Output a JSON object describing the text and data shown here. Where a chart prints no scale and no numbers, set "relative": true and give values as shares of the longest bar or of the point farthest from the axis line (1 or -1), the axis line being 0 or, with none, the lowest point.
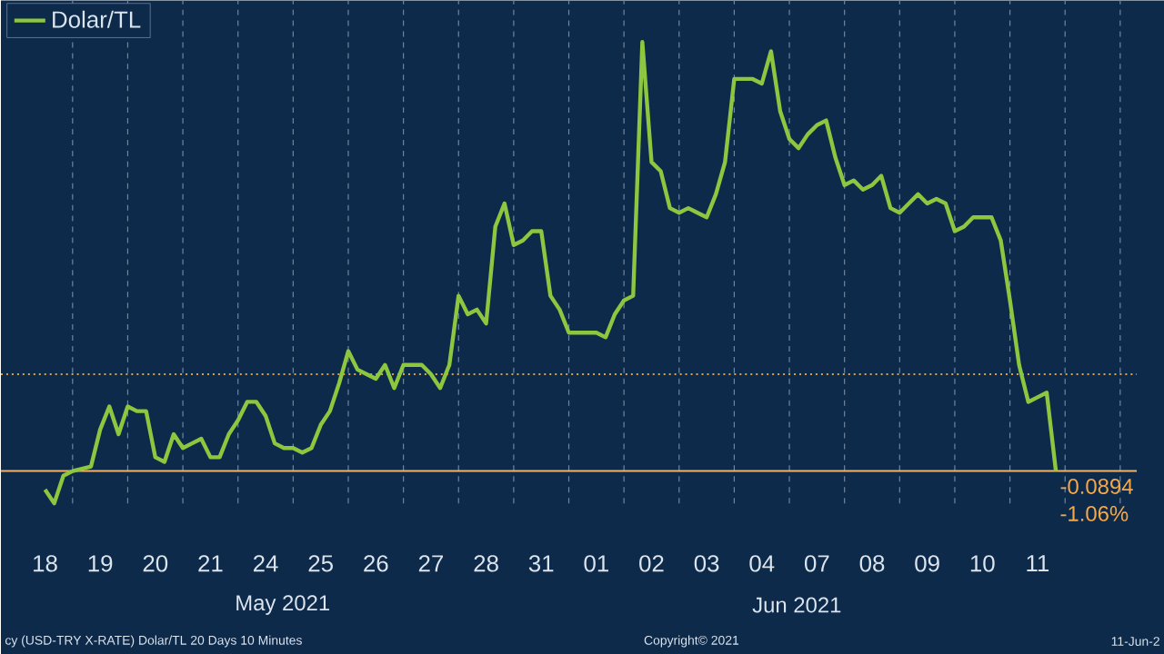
{
  "chart_data": {
    "type": "line",
    "relative": true,
    "legend": "top left",
    "grid": "x",
    "marker": "none",
    "line_style": "solid",
    "categories": [
      null,
      null,
      null,
      "18",
      null,
      null,
      null,
      null,
      null,
      "19",
      null,
      null,
      null,
      null,
      null,
      "20",
      null,
      null,
      null,
      null,
      null,
      "21",
      null,
      null,
      null,
      null,
      null,
      "24",
      null,
      null,
      null,
      null,
      null,
      "25",
      null,
      null,
      null,
      null,
      null,
      "26",
      null,
      null,
      null,
      null,
      null,
      "27",
      null,
      null,
      null,
      null,
      null,
      "28",
      null,
      null,
      null,
      null,
      null,
      "31",
      null,
      null,
      null,
      null,
      null,
      "01",
      null,
      null,
      null,
      null,
      null,
      "02",
      null,
      null,
      null,
      null,
      null,
      "03",
      null,
      null,
      null,
      null,
      null,
      "04",
      null,
      null,
      null,
      null,
      null,
      "07",
      null,
      null,
      null,
      null,
      null,
      "08",
      null,
      null,
      null,
      null,
      null,
      "09",
      null,
      null,
      null,
      null,
      null,
      "10",
      null,
      null,
      null,
      null,
      null,
      "11",
      null,
      null,
      null,
      null,
      null,
      null,
      null,
      null
    ],
    "series": [
      {
        "name": "Dolar/TL",
        "color": "#8dc63f",
        "values": [
          null,
          null,
          null,
          0.03,
          0,
          0.06,
          0.07,
          0.075,
          0.08,
          0.16,
          0.21,
          0.15,
          0.21,
          0.2,
          0.2,
          0.1,
          0.09,
          0.15,
          0.12,
          0.13,
          0.14,
          0.1,
          0.1,
          0.15,
          0.18,
          0.22,
          0.22,
          0.19,
          0.13,
          0.12,
          0.12,
          0.11,
          0.12,
          0.17,
          0.2,
          0.26,
          0.33,
          0.29,
          0.28,
          0.27,
          0.3,
          0.25,
          0.3,
          0.3,
          0.3,
          0.28,
          0.25,
          0.3,
          0.45,
          0.41,
          0.42,
          0.39,
          0.6,
          0.65,
          0.56,
          0.57,
          0.59,
          0.59,
          0.45,
          0.42,
          0.37,
          0.37,
          0.37,
          0.37,
          0.36,
          0.41,
          0.44,
          0.45,
          1,
          0.74,
          0.72,
          0.64,
          0.63,
          0.64,
          0.63,
          0.62,
          0.67,
          0.74,
          0.92,
          0.92,
          0.92,
          0.91,
          0.98,
          0.85,
          0.79,
          0.77,
          0.8,
          0.82,
          0.83,
          0.75,
          0.69,
          0.7,
          0.68,
          0.69,
          0.71,
          0.64,
          0.63,
          0.65,
          0.67,
          0.65,
          0.66,
          0.65,
          0.59,
          0.6,
          0.62,
          0.62,
          0.62,
          0.57,
          0.44,
          0.3,
          0.22,
          0.23,
          0.24,
          0.07,
          null,
          null,
          null,
          null,
          null,
          null
        ]
      }
    ],
    "ref_lines": [
      {
        "axis": "y",
        "value": 0.28,
        "color": "#d9a441",
        "line_style": "dotted"
      },
      {
        "axis": "y",
        "value": 0.07,
        "color": "#f4b26a",
        "line_style": "solid"
      }
    ],
    "annotations": [
      "May 2021",
      "Jun 2021",
      "cy (USD-TRY X-RATE) Dolar/TL 20 Days 10 Minutes",
      "Copyright© 2021",
      "11-Jun-2",
      {
        "text": "-0.0894",
        "y": 0.07
      },
      {
        "text": "-1.06%",
        "y": 0.07
      }
    ]
  }
}
